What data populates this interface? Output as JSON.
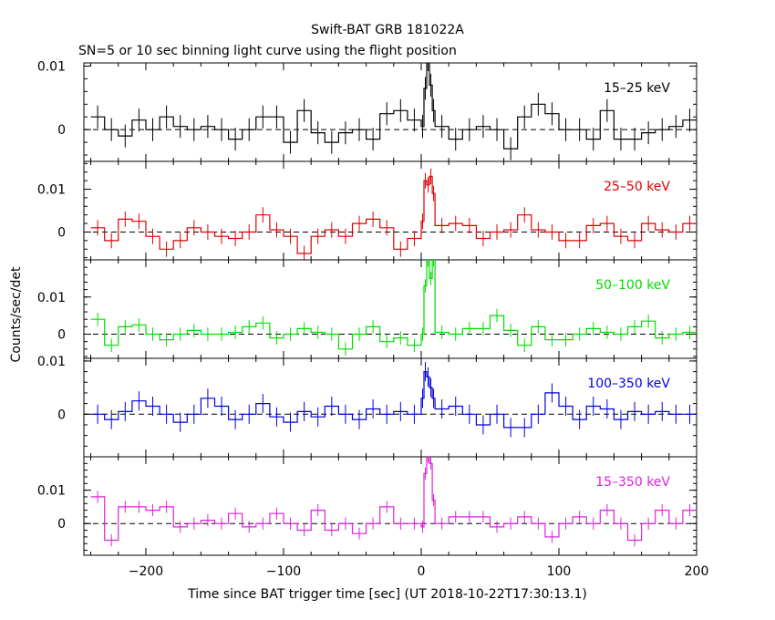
{
  "title": "Swift-BAT GRB 181022A",
  "subtitle": "SN=5 or 10 sec binning light curve using the flight position",
  "ylabel": "Counts/sec/det",
  "xlabel": "Time since BAT trigger time [sec] (UT 2018-10-22T17:30:13.1)",
  "chart_data": [
    {
      "type": "line",
      "name": "15-25 keV",
      "color": "#000000",
      "label": "15–25 keV",
      "xlim": [
        -245,
        200
      ],
      "ylim": [
        -0.005,
        0.0105
      ],
      "yticks": [
        0,
        0.01
      ],
      "ytick_labels": [
        "0",
        "0.01"
      ],
      "x": [
        -240,
        -230,
        -220,
        -210,
        -200,
        -190,
        -180,
        -170,
        -160,
        -150,
        -140,
        -130,
        -120,
        -110,
        -100,
        -90,
        -80,
        -70,
        -60,
        -50,
        -40,
        -30,
        -20,
        -10,
        0,
        2,
        4,
        6,
        8,
        10,
        20,
        30,
        40,
        50,
        60,
        70,
        80,
        90,
        100,
        110,
        120,
        130,
        140,
        150,
        160,
        170,
        180,
        190
      ],
      "y": [
        0.002,
        0.0,
        -0.001,
        0.0015,
        0.0,
        0.002,
        0.0005,
        0.0,
        0.0005,
        0.0,
        -0.0015,
        0.0,
        0.002,
        0.002,
        -0.002,
        0.003,
        -0.0005,
        -0.002,
        -0.0005,
        0.0,
        -0.0015,
        0.0025,
        0.003,
        0.0015,
        0.0005,
        0.0065,
        0.011,
        0.007,
        0.003,
        0.0005,
        -0.0015,
        0.0,
        0.0005,
        0.0,
        -0.003,
        0.002,
        0.004,
        0.0025,
        0.0,
        0.0,
        -0.0015,
        0.003,
        -0.0015,
        -0.0015,
        -0.0005,
        0.0,
        0.0005,
        0.0015
      ]
    },
    {
      "type": "line",
      "name": "25-50 keV",
      "color": "#dd0000",
      "label": "25–50 keV",
      "xlim": [
        -245,
        200
      ],
      "ylim": [
        -0.0065,
        0.0165
      ],
      "yticks": [
        0,
        0.01
      ],
      "ytick_labels": [
        "0",
        "0.01"
      ],
      "x": [
        -240,
        -230,
        -220,
        -210,
        -200,
        -190,
        -180,
        -170,
        -160,
        -150,
        -140,
        -130,
        -120,
        -110,
        -100,
        -90,
        -80,
        -70,
        -60,
        -50,
        -40,
        -30,
        -20,
        -10,
        0,
        2,
        4,
        6,
        8,
        10,
        20,
        30,
        40,
        50,
        60,
        70,
        80,
        90,
        100,
        110,
        120,
        130,
        140,
        150,
        160,
        170,
        180,
        190
      ],
      "y": [
        0.001,
        -0.002,
        0.003,
        0.0025,
        -0.001,
        -0.004,
        -0.002,
        0.001,
        0.0,
        -0.001,
        -0.0015,
        0.0,
        0.004,
        0.0005,
        -0.001,
        -0.005,
        -0.001,
        0.0005,
        -0.001,
        0.002,
        0.003,
        0.001,
        -0.004,
        -0.0015,
        0.0025,
        0.012,
        0.011,
        0.013,
        0.009,
        0.0015,
        0.002,
        0.0015,
        -0.0015,
        0.0,
        0.0005,
        0.004,
        0.0005,
        0.0,
        -0.002,
        -0.002,
        0.0015,
        0.002,
        -0.001,
        -0.002,
        0.002,
        0.0005,
        0.0,
        0.002
      ]
    },
    {
      "type": "line",
      "name": "50-100 keV",
      "color": "#00dd00",
      "label": "50–100 keV",
      "xlim": [
        -245,
        200
      ],
      "ylim": [
        -0.0065,
        0.02
      ],
      "yticks": [
        0,
        0.01
      ],
      "ytick_labels": [
        "0",
        "0.01"
      ],
      "x": [
        -240,
        -230,
        -220,
        -210,
        -200,
        -190,
        -180,
        -170,
        -160,
        -150,
        -140,
        -130,
        -120,
        -110,
        -100,
        -90,
        -80,
        -70,
        -60,
        -50,
        -40,
        -30,
        -20,
        -10,
        0,
        2,
        4,
        6,
        8,
        10,
        20,
        30,
        40,
        50,
        60,
        70,
        80,
        90,
        100,
        110,
        120,
        130,
        140,
        150,
        160,
        170,
        180,
        190
      ],
      "y": [
        0.004,
        -0.003,
        0.002,
        0.0025,
        0.0,
        -0.0015,
        0.0,
        0.001,
        0.0,
        0.0,
        0.0005,
        0.002,
        0.003,
        -0.001,
        0.0,
        0.0015,
        0.0005,
        0.0,
        -0.004,
        0.0,
        0.002,
        -0.002,
        -0.001,
        -0.003,
        0.0,
        0.013,
        0.02,
        0.015,
        0.02,
        0.0005,
        0.0,
        0.0015,
        0.0015,
        0.005,
        0.001,
        -0.003,
        0.002,
        -0.0015,
        -0.0015,
        0.0,
        0.0015,
        0.0005,
        0.0,
        0.002,
        0.0035,
        -0.001,
        0.0,
        0.0005
      ]
    },
    {
      "type": "line",
      "name": "100-350 keV",
      "color": "#0000dd",
      "label": "100–350 keV",
      "xlim": [
        -245,
        200
      ],
      "ylim": [
        -0.008,
        0.0105
      ],
      "yticks": [
        0,
        0.01
      ],
      "ytick_labels": [
        "0",
        "0.01"
      ],
      "x": [
        -240,
        -230,
        -220,
        -210,
        -200,
        -190,
        -180,
        -170,
        -160,
        -150,
        -140,
        -130,
        -120,
        -110,
        -100,
        -90,
        -80,
        -70,
        -60,
        -50,
        -40,
        -30,
        -20,
        -10,
        0,
        2,
        4,
        6,
        8,
        10,
        20,
        30,
        40,
        50,
        60,
        70,
        80,
        90,
        100,
        110,
        120,
        130,
        140,
        150,
        160,
        170,
        180,
        190
      ],
      "y": [
        0.0,
        -0.001,
        0.0005,
        0.0025,
        0.0015,
        0.0,
        -0.0015,
        0.0,
        0.003,
        0.0015,
        -0.001,
        0.0,
        0.002,
        -0.0005,
        -0.0015,
        0.0005,
        -0.0005,
        0.0015,
        0.0,
        -0.001,
        0.001,
        0.0,
        0.0005,
        0.0,
        0.003,
        0.008,
        0.007,
        0.005,
        0.003,
        0.001,
        0.0015,
        0.0,
        -0.002,
        0.0,
        -0.0025,
        -0.0025,
        0.0,
        0.004,
        0.0015,
        -0.001,
        0.0015,
        0.001,
        -0.001,
        0.0005,
        0.0,
        0.0005,
        0.0,
        0.0
      ]
    },
    {
      "type": "line",
      "name": "15-350 keV",
      "color": "#dd22dd",
      "label": "15–350 keV",
      "xlim": [
        -245,
        200
      ],
      "ylim": [
        -0.0095,
        0.02
      ],
      "yticks": [
        0,
        0.01
      ],
      "ytick_labels": [
        "0",
        "0.01"
      ],
      "x": [
        -240,
        -230,
        -220,
        -210,
        -200,
        -190,
        -180,
        -170,
        -160,
        -150,
        -140,
        -130,
        -120,
        -110,
        -100,
        -90,
        -80,
        -70,
        -60,
        -50,
        -40,
        -30,
        -20,
        -10,
        0,
        2,
        4,
        6,
        8,
        10,
        20,
        30,
        40,
        50,
        60,
        70,
        80,
        90,
        100,
        110,
        120,
        130,
        140,
        150,
        160,
        170,
        180,
        190
      ],
      "y": [
        0.008,
        -0.005,
        0.005,
        0.005,
        0.004,
        0.005,
        -0.001,
        0.0,
        0.001,
        0.0,
        0.003,
        -0.001,
        0.0,
        0.003,
        0.0,
        -0.002,
        0.004,
        -0.002,
        0.0,
        -0.003,
        0.0,
        0.005,
        0.0,
        0.0,
        -0.001,
        0.015,
        0.02,
        0.018,
        0.007,
        0.0,
        0.002,
        0.002,
        0.002,
        -0.001,
        0.0,
        0.002,
        0.0,
        -0.004,
        0.0,
        0.002,
        0.0,
        0.004,
        0.0,
        -0.005,
        0.0,
        0.004,
        0.0,
        0.004
      ]
    }
  ],
  "xaxis": {
    "ticks": [
      -200,
      -100,
      0,
      100,
      200
    ],
    "tick_labels": [
      "−200",
      "−100",
      "0",
      "100",
      "200"
    ]
  }
}
